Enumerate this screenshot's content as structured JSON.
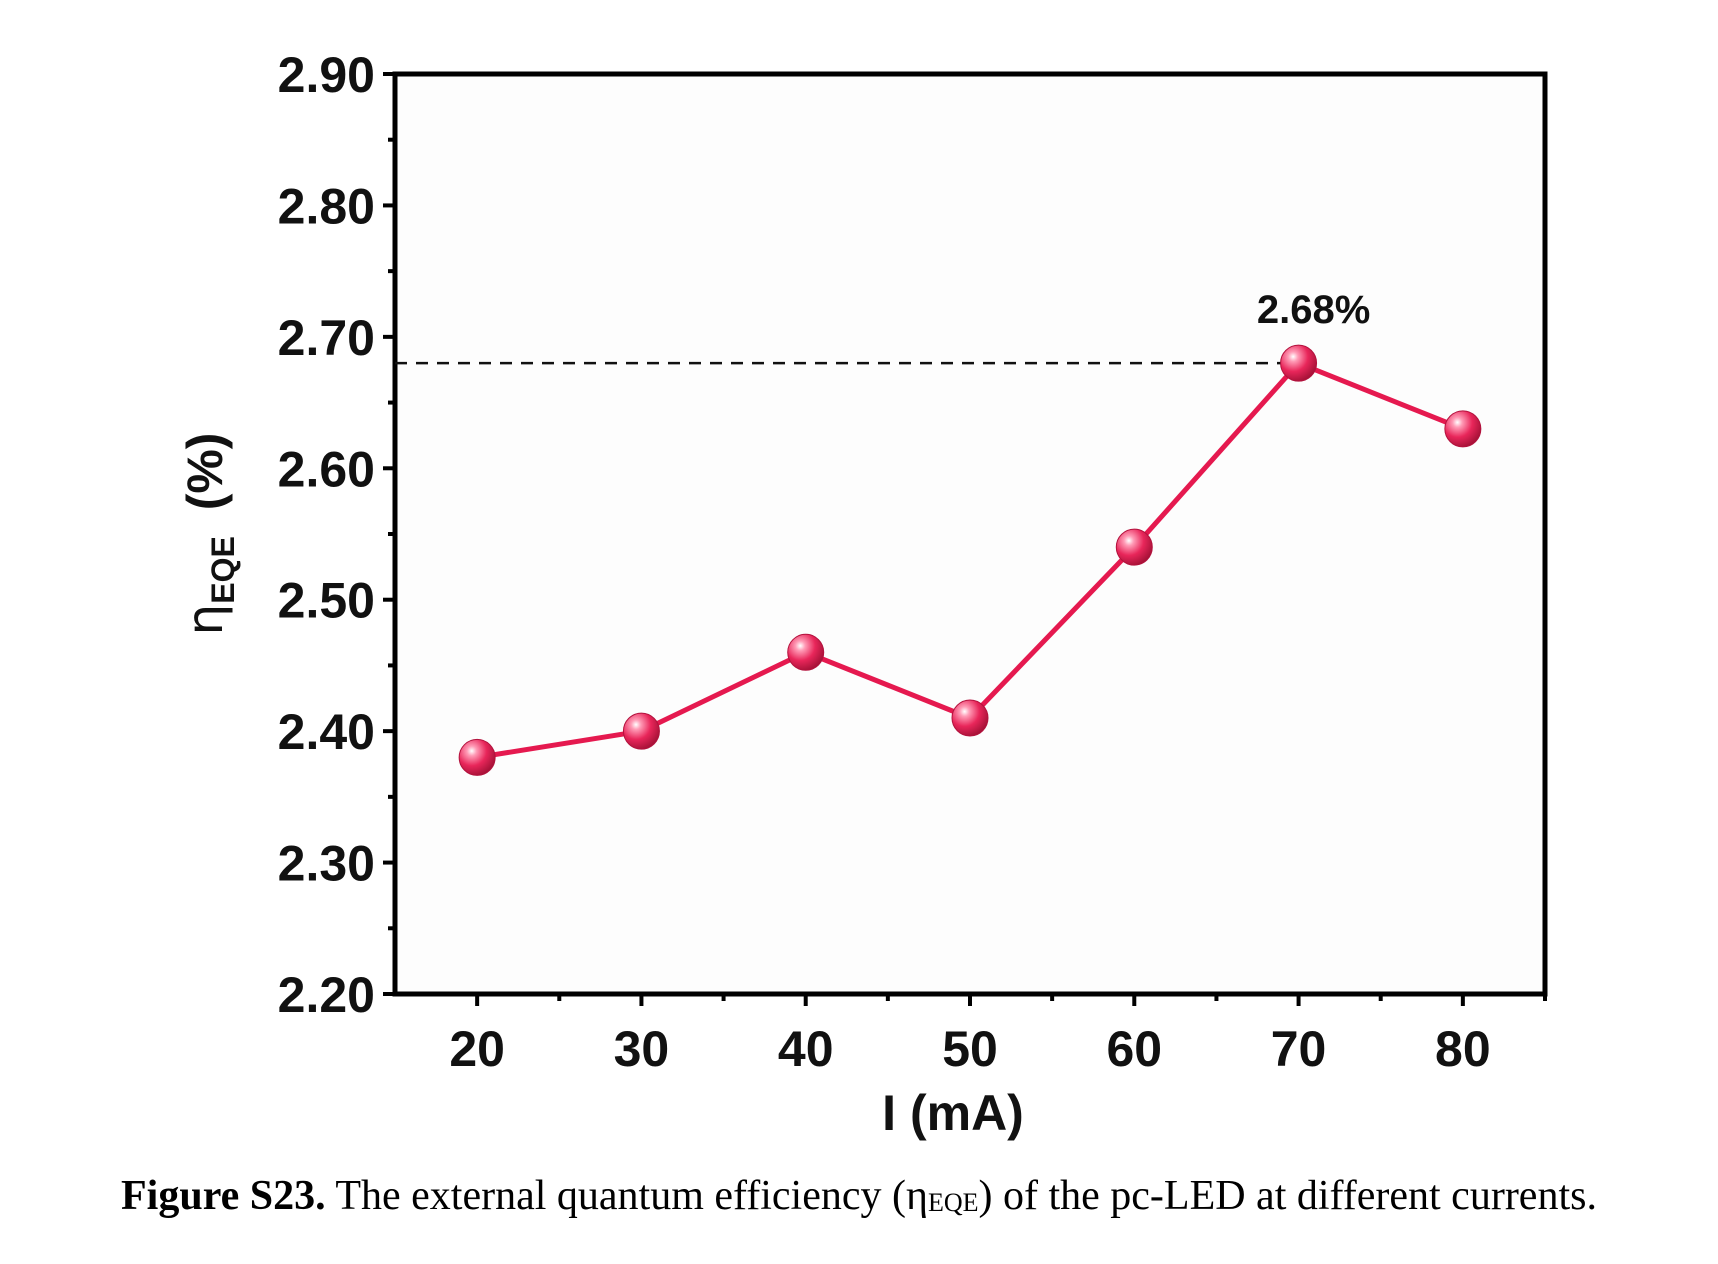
{
  "chart_data": {
    "type": "line",
    "xlabel": "I (mA)",
    "ylabel_symbol": "η",
    "ylabel_subscript": "EQE",
    "ylabel_unit": "(%)",
    "x": [
      20,
      30,
      40,
      50,
      60,
      70,
      80
    ],
    "series": [
      {
        "values": [
          2.38,
          2.4,
          2.46,
          2.41,
          2.54,
          2.68,
          2.63
        ]
      }
    ],
    "xlim": [
      15,
      85
    ],
    "ylim": [
      2.2,
      2.9
    ],
    "xticks": [
      "20",
      "30",
      "40",
      "50",
      "60",
      "70",
      "80"
    ],
    "yticks": [
      "2.20",
      "2.30",
      "2.40",
      "2.50",
      "2.60",
      "2.70",
      "2.80",
      "2.90"
    ],
    "reference_line": {
      "y": 2.68,
      "style": "dashed"
    },
    "annotation": "2.68%",
    "grid": false,
    "colors": {
      "series": "#e5194f",
      "marker": "#e8265a",
      "axes": "#000000",
      "plot_background": "#fdfdfd"
    }
  },
  "caption": {
    "label": "Figure S23.",
    "text_before": " The external quantum efficiency (η",
    "subscript": "EQE",
    "text_after": ") of the pc-LED at different currents."
  }
}
